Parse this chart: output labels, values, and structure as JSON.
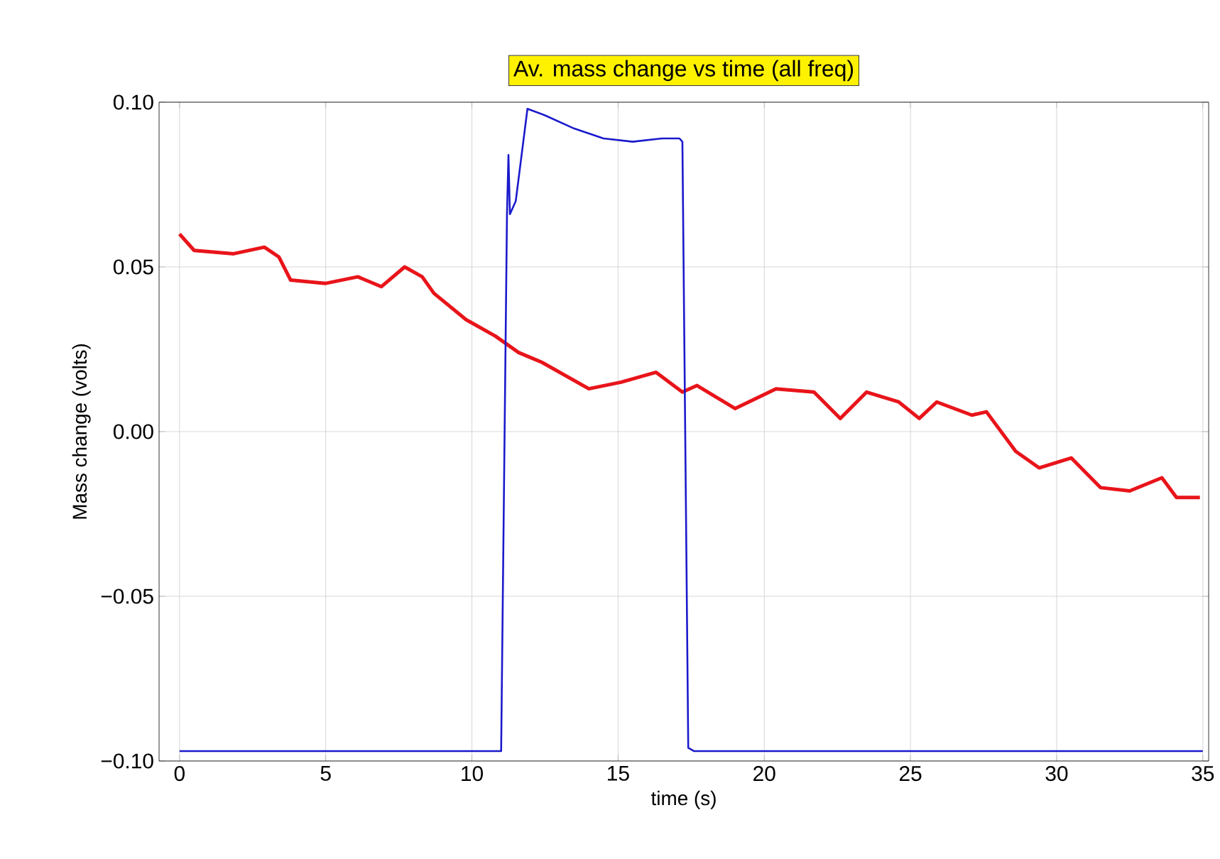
{
  "chart_data": {
    "type": "line",
    "title": "Av. mass change vs time (all freq)",
    "xlabel": "time (s)",
    "ylabel": "Mass change (volts)",
    "xlim": [
      -0.7,
      35.2
    ],
    "ylim": [
      -0.1,
      0.1
    ],
    "xticks": [
      0,
      5,
      10,
      15,
      20,
      25,
      30,
      35
    ],
    "yticks": [
      {
        "value": 0.1,
        "label": "0.10"
      },
      {
        "value": 0.05,
        "label": "0.05"
      },
      {
        "value": 0,
        "label": "0.00"
      },
      {
        "value": -0.05,
        "label": "−0.05"
      },
      {
        "value": -0.1,
        "label": "−0.10"
      }
    ],
    "grid": true,
    "marker": "none",
    "line_style": "solid",
    "series": [
      {
        "color": "#e8141a",
        "x": [
          0,
          0.5,
          1.85,
          2.9,
          3.4,
          3.8,
          5.0,
          6.1,
          6.9,
          7.7,
          8.3,
          8.7,
          9.8,
          10.8,
          11.6,
          12.4,
          14.0,
          15.1,
          16.3,
          17.2,
          17.7,
          19.0,
          20.4,
          21.7,
          22.6,
          23.5,
          24.6,
          25.3,
          25.9,
          27.1,
          27.6,
          28.6,
          29.4,
          30.5,
          31.5,
          32.5,
          33.6,
          34.1,
          34.9
        ],
        "values": [
          0.06,
          0.055,
          0.054,
          0.056,
          0.053,
          0.046,
          0.045,
          0.047,
          0.044,
          0.05,
          0.047,
          0.042,
          0.034,
          0.029,
          0.024,
          0.021,
          0.013,
          0.015,
          0.018,
          0.012,
          0.014,
          0.007,
          0.013,
          0.012,
          0.004,
          0.012,
          0.009,
          0.004,
          0.009,
          0.005,
          0.006,
          -0.006,
          -0.011,
          -0.008,
          -0.017,
          -0.018,
          -0.014,
          -0.02,
          -0.02
        ]
      },
      {
        "color": "#1a1acc",
        "x": [
          0,
          11.0,
          11.2,
          11.25,
          11.3,
          11.5,
          11.9,
          12.5,
          13.5,
          14.5,
          15.5,
          16.5,
          17.1,
          17.2,
          17.4,
          17.6,
          35
        ],
        "values": [
          -0.097,
          -0.097,
          0.066,
          0.084,
          0.066,
          0.07,
          0.098,
          0.096,
          0.092,
          0.089,
          0.088,
          0.089,
          0.089,
          0.088,
          -0.096,
          -0.097,
          -0.097
        ]
      }
    ]
  }
}
